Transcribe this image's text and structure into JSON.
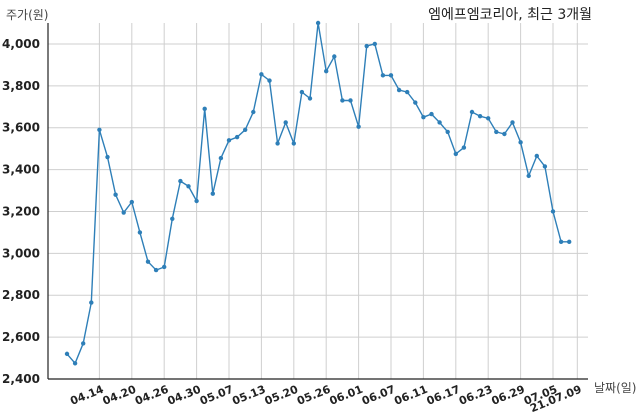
{
  "chart_data": {
    "type": "line",
    "title": "엠에프엠코리아, 최근 3개월",
    "ylabel": "주가(원)",
    "xlabel": "날짜(일)",
    "ylim": [
      2400,
      4100
    ],
    "yticks": [
      2400,
      2600,
      2800,
      3000,
      3200,
      3400,
      3600,
      3800,
      4000
    ],
    "ytick_labels": [
      "2,400",
      "2,600",
      "2,800",
      "3,000",
      "3,200",
      "3,400",
      "3,600",
      "3,800",
      "4,000"
    ],
    "xtick_labels": [
      "04.14",
      "04.20",
      "04.26",
      "04.30",
      "05.07",
      "05.13",
      "05.20",
      "05.26",
      "06.01",
      "06.07",
      "06.11",
      "06.17",
      "06.23",
      "06.29",
      "07.05",
      "21.07.09"
    ],
    "xtick_index": [
      4,
      8,
      12,
      16,
      20,
      24,
      28,
      32,
      36,
      40,
      44,
      48,
      52,
      56,
      60,
      63
    ],
    "grid": true,
    "color": "#2e7fb8",
    "series": [
      {
        "values": [
          2520,
          2475,
          2570,
          2765,
          3590,
          3460,
          3280,
          3195,
          3245,
          3100,
          2960,
          2920,
          2935,
          3165,
          3345,
          3320,
          3250,
          3690,
          3285,
          3455,
          3540,
          3555,
          3590,
          3675,
          3855,
          3825,
          3525,
          3625,
          3525,
          3770,
          3740,
          4100,
          3870,
          3940,
          3730,
          3730,
          3605,
          3990,
          4000,
          3850,
          3850,
          3780,
          3770,
          3720,
          3650,
          3665,
          3625,
          3580,
          3475,
          3505,
          3675,
          3655,
          3645,
          3580,
          3570,
          3625,
          3530,
          3370,
          3465,
          3415,
          3200,
          3055,
          3055
        ]
      }
    ]
  }
}
